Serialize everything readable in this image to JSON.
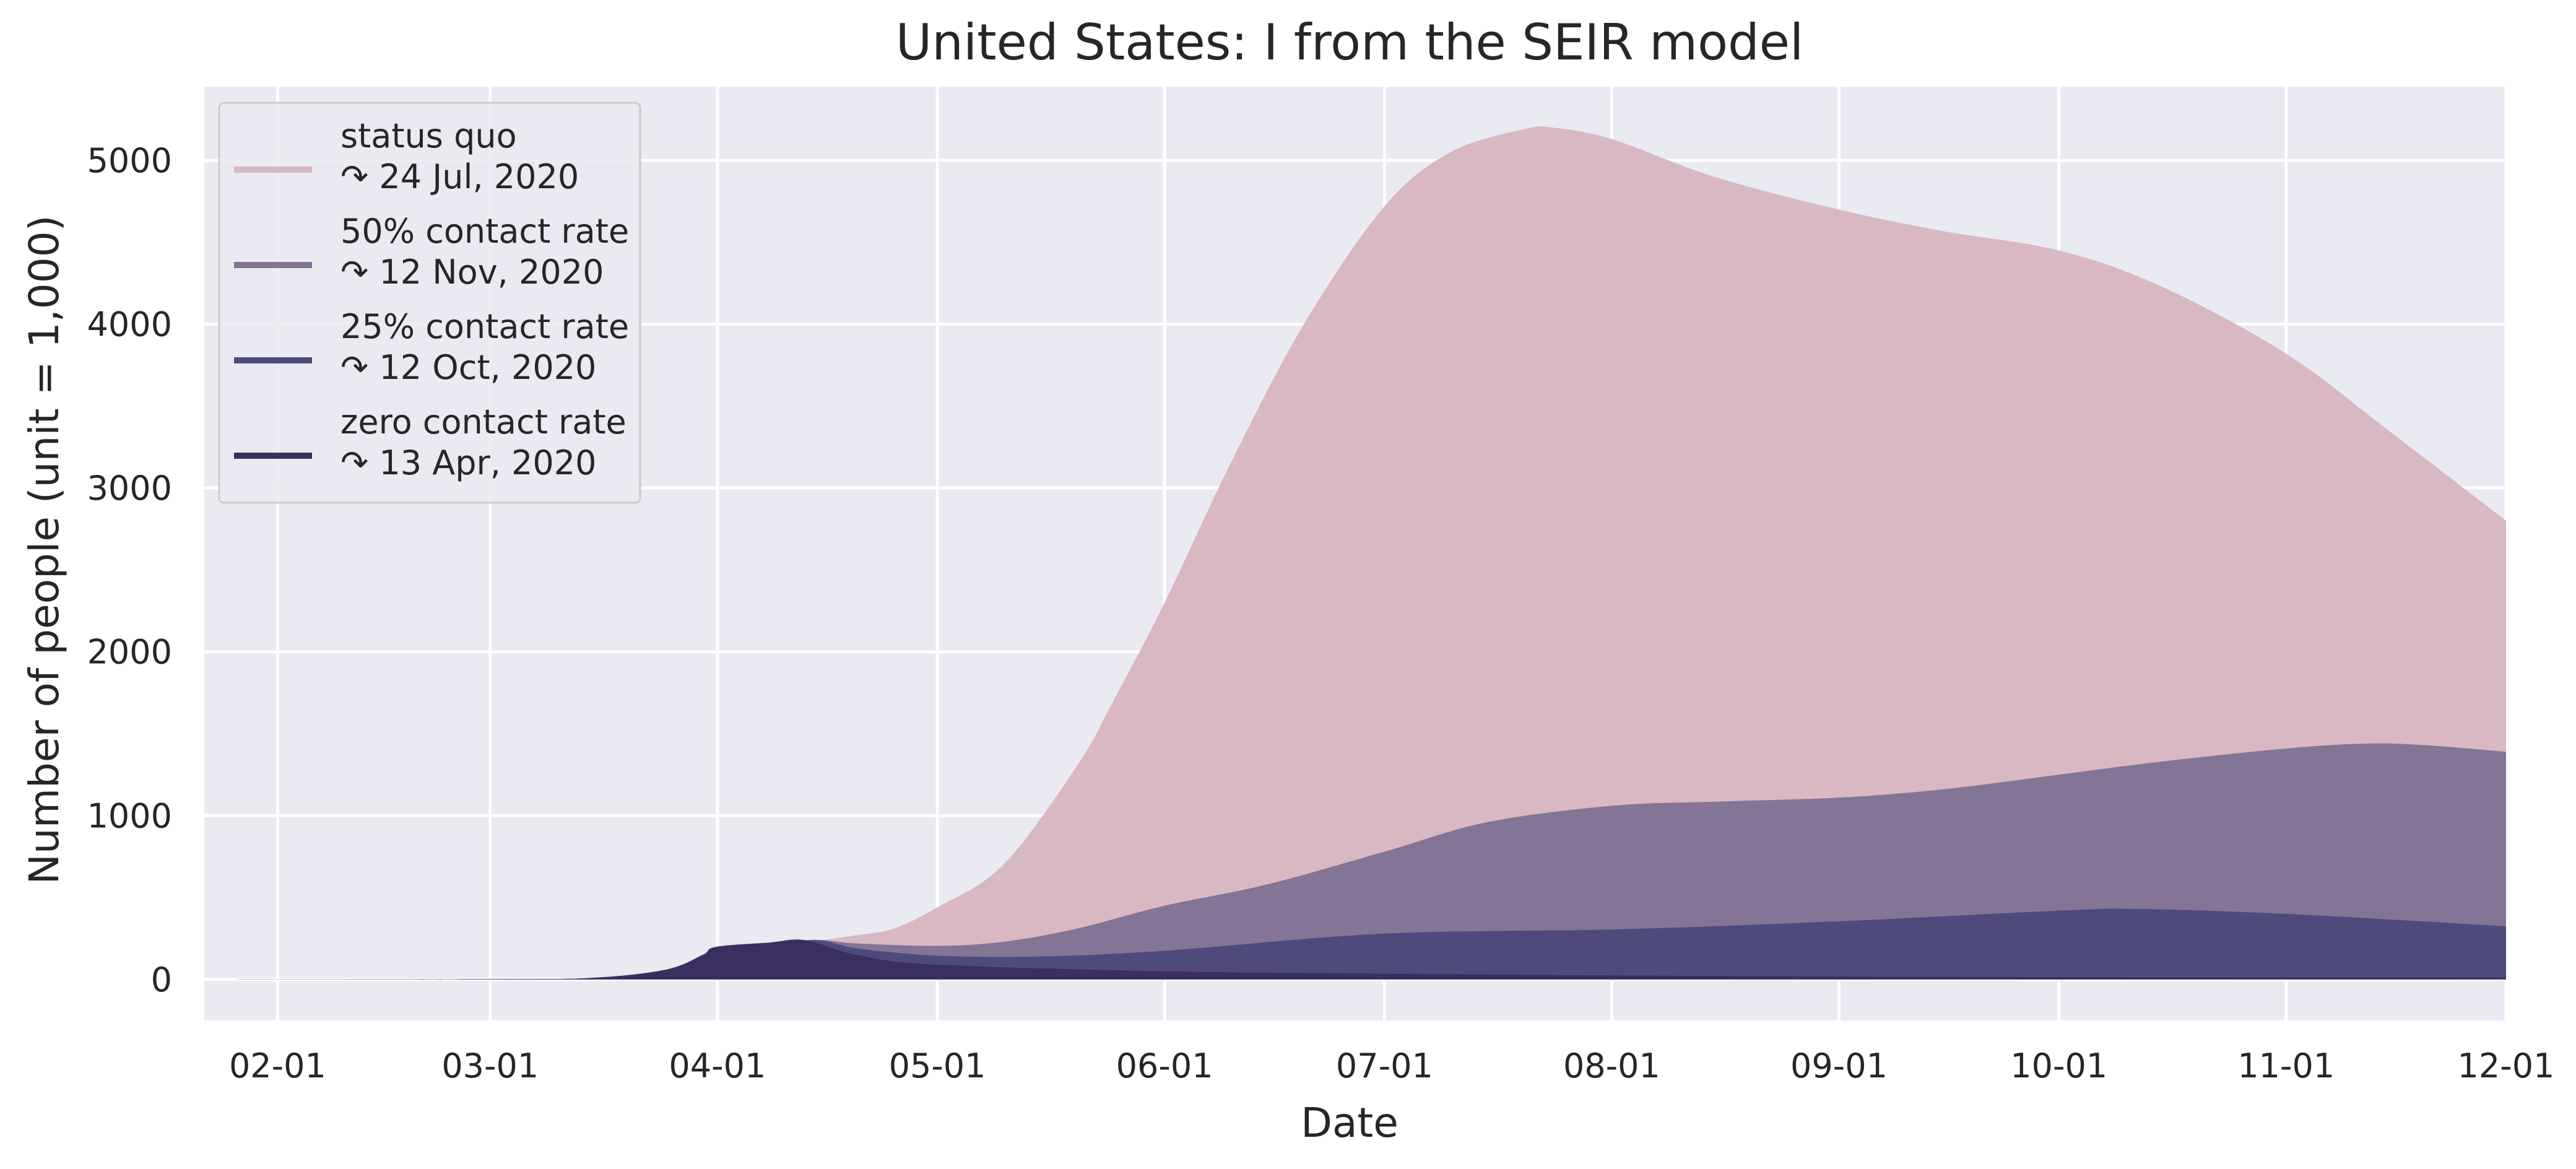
{
  "chart_data": {
    "type": "area",
    "title": "United States: I from the SEIR model",
    "xlabel": "Date",
    "ylabel": "Number of people (unit = 1,000)",
    "x_range": [
      "2020-01-22",
      "2020-12-01"
    ],
    "ylim": [
      -250,
      5450
    ],
    "x_ticks": [
      {
        "date": "2020-02-01",
        "label": "02-01"
      },
      {
        "date": "2020-03-01",
        "label": "03-01"
      },
      {
        "date": "2020-04-01",
        "label": "04-01"
      },
      {
        "date": "2020-05-01",
        "label": "05-01"
      },
      {
        "date": "2020-06-01",
        "label": "06-01"
      },
      {
        "date": "2020-07-01",
        "label": "07-01"
      },
      {
        "date": "2020-08-01",
        "label": "08-01"
      },
      {
        "date": "2020-09-01",
        "label": "09-01"
      },
      {
        "date": "2020-10-01",
        "label": "10-01"
      },
      {
        "date": "2020-11-01",
        "label": "11-01"
      },
      {
        "date": "2020-12-01",
        "label": "12-01"
      }
    ],
    "y_ticks": [
      {
        "value": 0,
        "label": "0"
      },
      {
        "value": 1000,
        "label": "1000"
      },
      {
        "value": 2000,
        "label": "2000"
      },
      {
        "value": 3000,
        "label": "3000"
      },
      {
        "value": 4000,
        "label": "4000"
      },
      {
        "value": 5000,
        "label": "5000"
      }
    ],
    "grid": true,
    "legend_position": "top-left",
    "background_color": "#eaeaf2",
    "series": [
      {
        "name": "status quo",
        "peak_label": "↷ 24 Jul, 2020",
        "color": "#d8b8c3",
        "points": [
          [
            "2020-01-22",
            0
          ],
          [
            "2020-03-01",
            2
          ],
          [
            "2020-03-15",
            10
          ],
          [
            "2020-03-25",
            60
          ],
          [
            "2020-03-30",
            150
          ],
          [
            "2020-04-01",
            200
          ],
          [
            "2020-04-10",
            225
          ],
          [
            "2020-04-15",
            240
          ],
          [
            "2020-04-20",
            270
          ],
          [
            "2020-04-25",
            310
          ],
          [
            "2020-05-01",
            440
          ],
          [
            "2020-05-10",
            700
          ],
          [
            "2020-05-20",
            1300
          ],
          [
            "2020-05-25",
            1700
          ],
          [
            "2020-06-01",
            2300
          ],
          [
            "2020-06-10",
            3150
          ],
          [
            "2020-06-20",
            4000
          ],
          [
            "2020-07-01",
            4720
          ],
          [
            "2020-07-10",
            5050
          ],
          [
            "2020-07-20",
            5190
          ],
          [
            "2020-07-24",
            5200
          ],
          [
            "2020-08-01",
            5130
          ],
          [
            "2020-08-15",
            4900
          ],
          [
            "2020-09-01",
            4700
          ],
          [
            "2020-09-15",
            4570
          ],
          [
            "2020-10-01",
            4450
          ],
          [
            "2020-10-15",
            4230
          ],
          [
            "2020-11-01",
            3820
          ],
          [
            "2020-11-15",
            3350
          ],
          [
            "2020-12-01",
            2800
          ]
        ]
      },
      {
        "name": "50% contact rate",
        "peak_label": "↷ 12 Nov, 2020",
        "color": "#847496",
        "points": [
          [
            "2020-01-22",
            0
          ],
          [
            "2020-03-01",
            2
          ],
          [
            "2020-03-15",
            10
          ],
          [
            "2020-03-25",
            60
          ],
          [
            "2020-03-30",
            150
          ],
          [
            "2020-04-01",
            200
          ],
          [
            "2020-04-10",
            225
          ],
          [
            "2020-04-15",
            240
          ],
          [
            "2020-04-20",
            220
          ],
          [
            "2020-05-01",
            205
          ],
          [
            "2020-05-10",
            230
          ],
          [
            "2020-05-20",
            310
          ],
          [
            "2020-06-01",
            450
          ],
          [
            "2020-06-15",
            580
          ],
          [
            "2020-07-01",
            780
          ],
          [
            "2020-07-15",
            960
          ],
          [
            "2020-08-01",
            1060
          ],
          [
            "2020-08-15",
            1085
          ],
          [
            "2020-09-01",
            1110
          ],
          [
            "2020-09-15",
            1160
          ],
          [
            "2020-10-01",
            1250
          ],
          [
            "2020-10-15",
            1330
          ],
          [
            "2020-11-01",
            1410
          ],
          [
            "2020-11-12",
            1440
          ],
          [
            "2020-11-20",
            1430
          ],
          [
            "2020-12-01",
            1390
          ]
        ]
      },
      {
        "name": "25% contact rate",
        "peak_label": "↷ 12 Oct, 2020",
        "color": "#4e4b7c",
        "points": [
          [
            "2020-01-22",
            0
          ],
          [
            "2020-03-01",
            2
          ],
          [
            "2020-03-15",
            10
          ],
          [
            "2020-03-25",
            60
          ],
          [
            "2020-03-30",
            150
          ],
          [
            "2020-04-01",
            200
          ],
          [
            "2020-04-10",
            225
          ],
          [
            "2020-04-15",
            240
          ],
          [
            "2020-04-20",
            190
          ],
          [
            "2020-05-01",
            145
          ],
          [
            "2020-05-15",
            140
          ],
          [
            "2020-06-01",
            175
          ],
          [
            "2020-07-01",
            280
          ],
          [
            "2020-08-01",
            305
          ],
          [
            "2020-09-01",
            355
          ],
          [
            "2020-10-01",
            420
          ],
          [
            "2020-10-12",
            430
          ],
          [
            "2020-11-01",
            400
          ],
          [
            "2020-12-01",
            325
          ]
        ]
      },
      {
        "name": "zero contact rate",
        "peak_label": "↷ 13 Apr, 2020",
        "color": "#3a2f5e",
        "points": [
          [
            "2020-01-22",
            0
          ],
          [
            "2020-03-01",
            2
          ],
          [
            "2020-03-15",
            10
          ],
          [
            "2020-03-25",
            60
          ],
          [
            "2020-03-30",
            150
          ],
          [
            "2020-04-01",
            200
          ],
          [
            "2020-04-08",
            225
          ],
          [
            "2020-04-13",
            240
          ],
          [
            "2020-04-20",
            150
          ],
          [
            "2020-05-01",
            90
          ],
          [
            "2020-06-01",
            50
          ],
          [
            "2020-07-01",
            35
          ],
          [
            "2020-08-01",
            25
          ],
          [
            "2020-09-01",
            18
          ],
          [
            "2020-10-01",
            14
          ],
          [
            "2020-11-01",
            12
          ],
          [
            "2020-12-01",
            10
          ]
        ]
      }
    ]
  }
}
